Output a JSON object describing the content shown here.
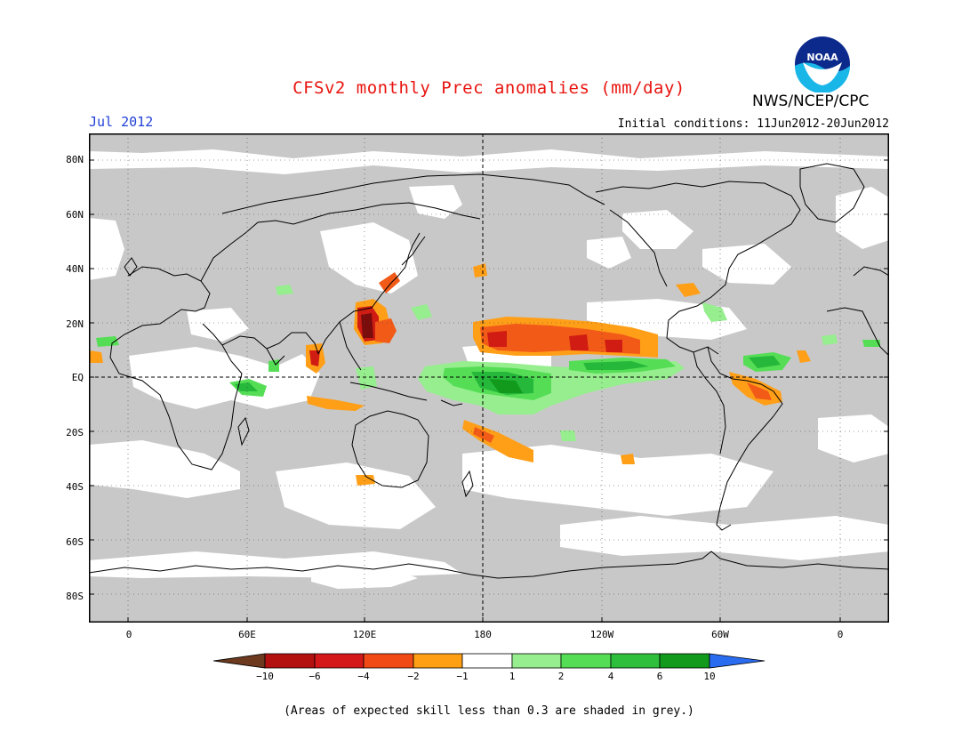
{
  "header": {
    "title": "CFSv2 monthly Prec anomalies (mm/day)",
    "month": "Jul 2012",
    "initial_conditions": "Initial conditions: 11Jun2012-20Jun2012",
    "org": "NWS/NCEP/CPC",
    "logo_text": "NOAA"
  },
  "map": {
    "lat_ticks": [
      "80N",
      "60N",
      "40N",
      "20N",
      "EQ",
      "20S",
      "40S",
      "60S",
      "80S"
    ],
    "lon_ticks": [
      "0",
      "60E",
      "120E",
      "180",
      "120W",
      "60W",
      "0"
    ],
    "colors": {
      "land_gray": "#c8c8c8",
      "ocean_white": "#ffffff",
      "dry_dark": "#7a0c0c",
      "dry_strong": "#d01c12",
      "dry_mid": "#f25a18",
      "dry_light": "#ff9f18",
      "wet_light": "#96ee8e",
      "wet_mid": "#55de55",
      "wet_strong": "#25b83a",
      "wet_dark": "#129a1c",
      "wet_extreme": "#2a6cf0"
    }
  },
  "colorbar": {
    "labels": [
      "−10",
      "−6",
      "−4",
      "−2",
      "−1",
      "1",
      "2",
      "4",
      "6",
      "10"
    ],
    "colors": [
      "#6d3a1f",
      "#b31010",
      "#d4181a",
      "#f24a16",
      "#ff9f14",
      "#ffffff",
      "#96ee8e",
      "#55de55",
      "#2fbf3c",
      "#129a1c",
      "#2a6cf0"
    ]
  },
  "footnote": "(Areas of expected skill less than 0.3 are shaded in grey.)"
}
